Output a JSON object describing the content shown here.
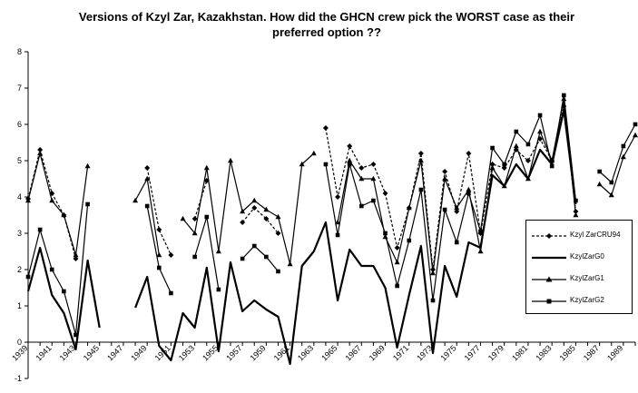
{
  "chart_data": {
    "type": "line",
    "title": "Versions of Kzyl Zar, Kazakhstan. How did the GHCN crew pick the WORST case as their preferred option ??",
    "xlabel": "",
    "ylabel": "",
    "ylim": [
      -1,
      8
    ],
    "yticks": [
      -1,
      0,
      1,
      2,
      3,
      4,
      5,
      6,
      7,
      8
    ],
    "x_tick_labels": [
      "1939",
      "1941",
      "1943",
      "1945",
      "1947",
      "1949",
      "1951",
      "1953",
      "1955",
      "1957",
      "1959",
      "1961",
      "1963",
      "1965",
      "1967",
      "1969",
      "1971",
      "1973",
      "1975",
      "1977",
      "1979",
      "1981",
      "1983",
      "1985",
      "1987",
      "1989"
    ],
    "grid": false,
    "legend_position": "right",
    "x": [
      1939,
      1940,
      1941,
      1942,
      1943,
      1944,
      1945,
      1946,
      1947,
      1948,
      1949,
      1950,
      1951,
      1952,
      1953,
      1954,
      1955,
      1956,
      1957,
      1958,
      1959,
      1960,
      1961,
      1962,
      1963,
      1964,
      1965,
      1966,
      1967,
      1968,
      1969,
      1970,
      1971,
      1972,
      1973,
      1974,
      1975,
      1976,
      1977,
      1978,
      1979,
      1980,
      1981,
      1982,
      1983,
      1984,
      1985,
      1986,
      1987,
      1988,
      1989,
      1990
    ],
    "series": [
      {
        "name": "Kzyl ZarCRU94",
        "style": "dotted",
        "marker": "diamond",
        "values": [
          3.95,
          5.3,
          4.1,
          3.5,
          2.3,
          null,
          null,
          null,
          null,
          null,
          4.8,
          3.1,
          2.4,
          null,
          3.4,
          4.45,
          null,
          null,
          3.3,
          3.7,
          3.4,
          3.0,
          null,
          null,
          null,
          5.9,
          4.0,
          5.4,
          4.8,
          4.9,
          4.1,
          2.6,
          3.7,
          5.2,
          2.0,
          4.7,
          3.6,
          5.2,
          3.0,
          4.9,
          4.8,
          5.3,
          5.0,
          5.6,
          5.0,
          6.5,
          3.6,
          null,
          null,
          null,
          null,
          null
        ]
      },
      {
        "name": "KzylZarG0",
        "style": "solid-thick",
        "marker": "none",
        "values": [
          1.4,
          2.6,
          1.3,
          0.8,
          -0.2,
          2.25,
          0.4,
          null,
          null,
          0.95,
          1.8,
          -0.1,
          -0.5,
          0.8,
          0.4,
          2.05,
          -0.25,
          2.2,
          0.85,
          1.15,
          0.9,
          0.7,
          -0.6,
          2.1,
          2.5,
          3.3,
          1.15,
          2.55,
          2.1,
          2.1,
          1.5,
          -0.15,
          1.3,
          2.65,
          -0.3,
          2.1,
          1.25,
          2.75,
          2.6,
          4.6,
          4.3,
          4.9,
          4.5,
          5.3,
          4.9,
          6.4,
          3.8,
          null,
          null,
          null,
          null,
          null
        ]
      },
      {
        "name": "KzylZarG1",
        "style": "solid",
        "marker": "triangle",
        "values": [
          3.9,
          5.2,
          3.9,
          3.5,
          2.4,
          4.85,
          null,
          null,
          null,
          3.9,
          4.5,
          2.4,
          null,
          3.4,
          3.0,
          4.8,
          2.5,
          5.0,
          3.6,
          3.9,
          3.65,
          3.45,
          2.15,
          4.9,
          5.2,
          null,
          3.3,
          5.0,
          4.5,
          4.5,
          2.9,
          2.2,
          3.7,
          5.0,
          1.9,
          4.5,
          3.7,
          4.2,
          2.5,
          4.8,
          4.3,
          5.4,
          4.5,
          5.8,
          5.0,
          6.7,
          3.5,
          null,
          4.35,
          4.05,
          5.1,
          5.7
        ]
      },
      {
        "name": "KzylZarG2",
        "style": "solid",
        "marker": "square",
        "values": [
          1.8,
          3.1,
          2.0,
          1.4,
          0.2,
          3.8,
          null,
          null,
          null,
          null,
          3.75,
          2.05,
          1.35,
          null,
          2.35,
          3.45,
          1.45,
          null,
          2.3,
          2.65,
          2.35,
          1.95,
          null,
          null,
          null,
          4.9,
          2.95,
          4.9,
          3.75,
          3.9,
          3.0,
          1.55,
          2.8,
          4.2,
          1.15,
          3.65,
          2.75,
          4.1,
          3.05,
          5.35,
          4.9,
          5.8,
          5.45,
          6.25,
          4.85,
          6.8,
          3.9,
          null,
          4.7,
          4.4,
          5.4,
          6.0
        ]
      }
    ]
  }
}
